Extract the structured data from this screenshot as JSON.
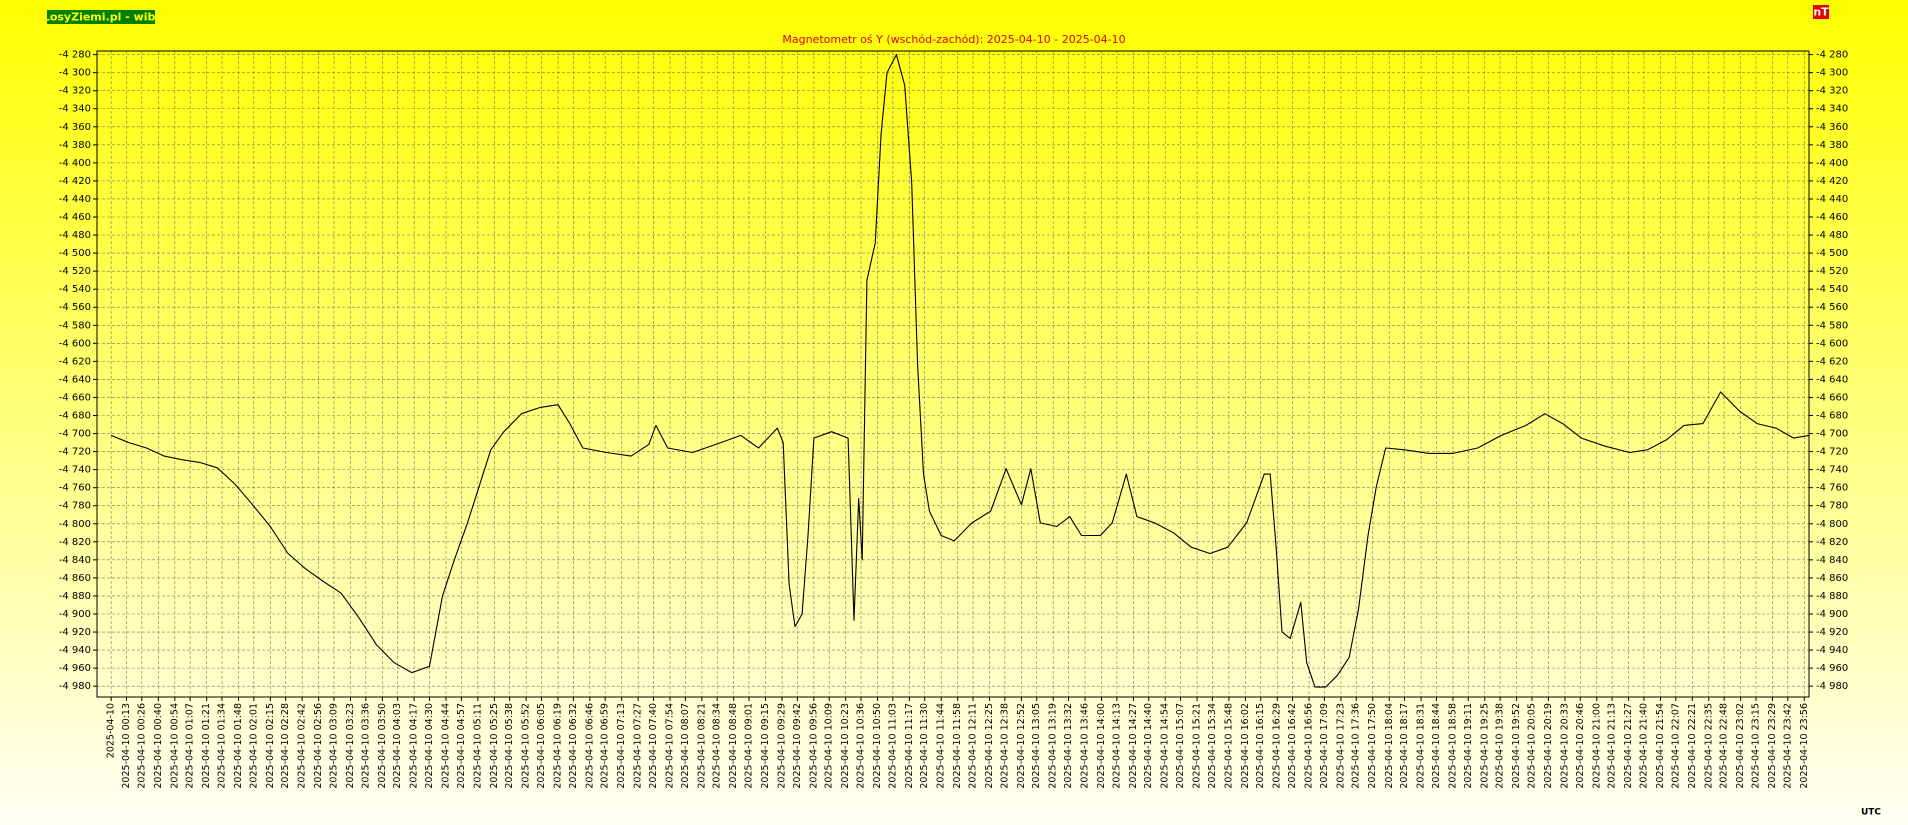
{
  "chart_data": {
    "type": "line",
    "badge": "LosyZiemi.pl - wibi",
    "y_unit": "nT",
    "x_unit": "UTC",
    "title": "Magnetometr oś Y (wschód-zachód): 2025-04-10 - 2025-04-10",
    "color": "#000000",
    "grid": true,
    "xlim": [
      -12,
      1440
    ],
    "ylim": [
      -4992,
      -4276
    ],
    "yticks": [
      {
        "value": -4280,
        "label": "-4 280"
      },
      {
        "value": -4300,
        "label": "-4 300"
      },
      {
        "value": -4320,
        "label": "-4 320"
      },
      {
        "value": -4340,
        "label": "-4 340"
      },
      {
        "value": -4360,
        "label": "-4 360"
      },
      {
        "value": -4380,
        "label": "-4 380"
      },
      {
        "value": -4400,
        "label": "-4 400"
      },
      {
        "value": -4420,
        "label": "-4 420"
      },
      {
        "value": -4440,
        "label": "-4 440"
      },
      {
        "value": -4460,
        "label": "-4 460"
      },
      {
        "value": -4480,
        "label": "-4 480"
      },
      {
        "value": -4500,
        "label": "-4 500"
      },
      {
        "value": -4520,
        "label": "-4 520"
      },
      {
        "value": -4540,
        "label": "-4 540"
      },
      {
        "value": -4560,
        "label": "-4 560"
      },
      {
        "value": -4580,
        "label": "-4 580"
      },
      {
        "value": -4600,
        "label": "-4 600"
      },
      {
        "value": -4620,
        "label": "-4 620"
      },
      {
        "value": -4640,
        "label": "-4 640"
      },
      {
        "value": -4660,
        "label": "-4 660"
      },
      {
        "value": -4680,
        "label": "-4 680"
      },
      {
        "value": -4700,
        "label": "-4 700"
      },
      {
        "value": -4720,
        "label": "-4 720"
      },
      {
        "value": -4740,
        "label": "-4 740"
      },
      {
        "value": -4760,
        "label": "-4 760"
      },
      {
        "value": -4780,
        "label": "-4 780"
      },
      {
        "value": -4800,
        "label": "-4 800"
      },
      {
        "value": -4820,
        "label": "-4 820"
      },
      {
        "value": -4840,
        "label": "-4 840"
      },
      {
        "value": -4860,
        "label": "-4 860"
      },
      {
        "value": -4880,
        "label": "-4 880"
      },
      {
        "value": -4900,
        "label": "-4 900"
      },
      {
        "value": -4920,
        "label": "-4 920"
      },
      {
        "value": -4940,
        "label": "-4 940"
      },
      {
        "value": -4960,
        "label": "-4 960"
      },
      {
        "value": -4980,
        "label": "-4 980"
      }
    ],
    "xticks": [
      {
        "value": 0,
        "label": "2025-04-10"
      },
      {
        "value": 13,
        "label": "2025-04-10 00:13"
      },
      {
        "value": 26,
        "label": "2025-04-10 00:26"
      },
      {
        "value": 40,
        "label": "2025-04-10 00:40"
      },
      {
        "value": 54,
        "label": "2025-04-10 00:54"
      },
      {
        "value": 67,
        "label": "2025-04-10 01:07"
      },
      {
        "value": 81,
        "label": "2025-04-10 01:21"
      },
      {
        "value": 94,
        "label": "2025-04-10 01:34"
      },
      {
        "value": 108,
        "label": "2025-04-10 01:48"
      },
      {
        "value": 121,
        "label": "2025-04-10 02:01"
      },
      {
        "value": 135,
        "label": "2025-04-10 02:15"
      },
      {
        "value": 148,
        "label": "2025-04-10 02:28"
      },
      {
        "value": 162,
        "label": "2025-04-10 02:42"
      },
      {
        "value": 176,
        "label": "2025-04-10 02:56"
      },
      {
        "value": 189,
        "label": "2025-04-10 03:09"
      },
      {
        "value": 203,
        "label": "2025-04-10 03:23"
      },
      {
        "value": 216,
        "label": "2025-04-10 03:36"
      },
      {
        "value": 230,
        "label": "2025-04-10 03:50"
      },
      {
        "value": 243,
        "label": "2025-04-10 04:03"
      },
      {
        "value": 257,
        "label": "2025-04-10 04:17"
      },
      {
        "value": 270,
        "label": "2025-04-10 04:30"
      },
      {
        "value": 284,
        "label": "2025-04-10 04:44"
      },
      {
        "value": 297,
        "label": "2025-04-10 04:57"
      },
      {
        "value": 311,
        "label": "2025-04-10 05:11"
      },
      {
        "value": 325,
        "label": "2025-04-10 05:25"
      },
      {
        "value": 338,
        "label": "2025-04-10 05:38"
      },
      {
        "value": 352,
        "label": "2025-04-10 05:52"
      },
      {
        "value": 365,
        "label": "2025-04-10 06:05"
      },
      {
        "value": 379,
        "label": "2025-04-10 06:19"
      },
      {
        "value": 392,
        "label": "2025-04-10 06:32"
      },
      {
        "value": 406,
        "label": "2025-04-10 06:46"
      },
      {
        "value": 419,
        "label": "2025-04-10 06:59"
      },
      {
        "value": 433,
        "label": "2025-04-10 07:13"
      },
      {
        "value": 447,
        "label": "2025-04-10 07:27"
      },
      {
        "value": 460,
        "label": "2025-04-10 07:40"
      },
      {
        "value": 474,
        "label": "2025-04-10 07:54"
      },
      {
        "value": 487,
        "label": "2025-04-10 08:07"
      },
      {
        "value": 501,
        "label": "2025-04-10 08:21"
      },
      {
        "value": 514,
        "label": "2025-04-10 08:34"
      },
      {
        "value": 528,
        "label": "2025-04-10 08:48"
      },
      {
        "value": 541,
        "label": "2025-04-10 09:01"
      },
      {
        "value": 555,
        "label": "2025-04-10 09:15"
      },
      {
        "value": 569,
        "label": "2025-04-10 09:29"
      },
      {
        "value": 582,
        "label": "2025-04-10 09:42"
      },
      {
        "value": 596,
        "label": "2025-04-10 09:56"
      },
      {
        "value": 609,
        "label": "2025-04-10 10:09"
      },
      {
        "value": 623,
        "label": "2025-04-10 10:23"
      },
      {
        "value": 636,
        "label": "2025-04-10 10:36"
      },
      {
        "value": 650,
        "label": "2025-04-10 10:50"
      },
      {
        "value": 663,
        "label": "2025-04-10 11:03"
      },
      {
        "value": 677,
        "label": "2025-04-10 11:17"
      },
      {
        "value": 690,
        "label": "2025-04-10 11:30"
      },
      {
        "value": 704,
        "label": "2025-04-10 11:44"
      },
      {
        "value": 718,
        "label": "2025-04-10 11:58"
      },
      {
        "value": 731,
        "label": "2025-04-10 12:11"
      },
      {
        "value": 745,
        "label": "2025-04-10 12:25"
      },
      {
        "value": 758,
        "label": "2025-04-10 12:38"
      },
      {
        "value": 772,
        "label": "2025-04-10 12:52"
      },
      {
        "value": 785,
        "label": "2025-04-10 13:05"
      },
      {
        "value": 799,
        "label": "2025-04-10 13:19"
      },
      {
        "value": 812,
        "label": "2025-04-10 13:32"
      },
      {
        "value": 826,
        "label": "2025-04-10 13:46"
      },
      {
        "value": 840,
        "label": "2025-04-10 14:00"
      },
      {
        "value": 853,
        "label": "2025-04-10 14:13"
      },
      {
        "value": 867,
        "label": "2025-04-10 14:27"
      },
      {
        "value": 880,
        "label": "2025-04-10 14:40"
      },
      {
        "value": 894,
        "label": "2025-04-10 14:54"
      },
      {
        "value": 907,
        "label": "2025-04-10 15:07"
      },
      {
        "value": 921,
        "label": "2025-04-10 15:21"
      },
      {
        "value": 934,
        "label": "2025-04-10 15:34"
      },
      {
        "value": 948,
        "label": "2025-04-10 15:48"
      },
      {
        "value": 962,
        "label": "2025-04-10 16:02"
      },
      {
        "value": 975,
        "label": "2025-04-10 16:15"
      },
      {
        "value": 989,
        "label": "2025-04-10 16:29"
      },
      {
        "value": 1002,
        "label": "2025-04-10 16:42"
      },
      {
        "value": 1016,
        "label": "2025-04-10 16:56"
      },
      {
        "value": 1029,
        "label": "2025-04-10 17:09"
      },
      {
        "value": 1043,
        "label": "2025-04-10 17:23"
      },
      {
        "value": 1056,
        "label": "2025-04-10 17:36"
      },
      {
        "value": 1070,
        "label": "2025-04-10 17:50"
      },
      {
        "value": 1084,
        "label": "2025-04-10 18:04"
      },
      {
        "value": 1097,
        "label": "2025-04-10 18:17"
      },
      {
        "value": 1111,
        "label": "2025-04-10 18:31"
      },
      {
        "value": 1124,
        "label": "2025-04-10 18:44"
      },
      {
        "value": 1138,
        "label": "2025-04-10 18:58"
      },
      {
        "value": 1151,
        "label": "2025-04-10 19:11"
      },
      {
        "value": 1165,
        "label": "2025-04-10 19:25"
      },
      {
        "value": 1178,
        "label": "2025-04-10 19:38"
      },
      {
        "value": 1192,
        "label": "2025-04-10 19:52"
      },
      {
        "value": 1205,
        "label": "2025-04-10 20:05"
      },
      {
        "value": 1219,
        "label": "2025-04-10 20:19"
      },
      {
        "value": 1233,
        "label": "2025-04-10 20:33"
      },
      {
        "value": 1246,
        "label": "2025-04-10 20:46"
      },
      {
        "value": 1260,
        "label": "2025-04-10 21:00"
      },
      {
        "value": 1273,
        "label": "2025-04-10 21:13"
      },
      {
        "value": 1287,
        "label": "2025-04-10 21:27"
      },
      {
        "value": 1300,
        "label": "2025-04-10 21:40"
      },
      {
        "value": 1314,
        "label": "2025-04-10 21:54"
      },
      {
        "value": 1327,
        "label": "2025-04-10 22:07"
      },
      {
        "value": 1341,
        "label": "2025-04-10 22:21"
      },
      {
        "value": 1355,
        "label": "2025-04-10 22:35"
      },
      {
        "value": 1368,
        "label": "2025-04-10 22:48"
      },
      {
        "value": 1382,
        "label": "2025-04-10 23:02"
      },
      {
        "value": 1395,
        "label": "2025-04-10 23:15"
      },
      {
        "value": 1409,
        "label": "2025-04-10 23:29"
      },
      {
        "value": 1422,
        "label": "2025-04-10 23:42"
      },
      {
        "value": 1436,
        "label": "2025-04-10 23:56"
      }
    ],
    "x": [
      0,
      15,
      30,
      45,
      60,
      75,
      90,
      105,
      120,
      135,
      150,
      165,
      180,
      195,
      210,
      225,
      240,
      255,
      270,
      281,
      291,
      302,
      312,
      322,
      333,
      348,
      364,
      379,
      389,
      400,
      420,
      441,
      456,
      462,
      472,
      493,
      513,
      534,
      549,
      565,
      570,
      575,
      580,
      586,
      591,
      596,
      611,
      625,
      630,
      634,
      637,
      641,
      648,
      653,
      658,
      666,
      673,
      679,
      684,
      689,
      694,
      704,
      715,
      730,
      746,
      759,
      772,
      780,
      788,
      802,
      813,
      823,
      839,
      849,
      861,
      870,
      885,
      901,
      916,
      932,
      947,
      963,
      978,
      983,
      988,
      993,
      1000,
      1009,
      1014,
      1021,
      1030,
      1040,
      1050,
      1058,
      1066,
      1073,
      1081,
      1097,
      1118,
      1138,
      1159,
      1179,
      1200,
      1216,
      1231,
      1247,
      1267,
      1288,
      1303,
      1319,
      1334,
      1350,
      1365,
      1381,
      1396,
      1412,
      1427,
      1440
    ],
    "values": [
      -4702,
      -4710,
      -4716,
      -4725,
      -4729,
      -4732,
      -4738,
      -4756,
      -4779,
      -4803,
      -4833,
      -4850,
      -4864,
      -4877,
      -4904,
      -4934,
      -4954,
      -4965,
      -4958,
      -4880,
      -4840,
      -4800,
      -4759,
      -4718,
      -4698,
      -4678,
      -4671,
      -4668,
      -4689,
      -4716,
      -4721,
      -4725,
      -4712,
      -4691,
      -4716,
      -4721,
      -4712,
      -4702,
      -4716,
      -4694,
      -4710,
      -4867,
      -4914,
      -4900,
      -4813,
      -4705,
      -4698,
      -4705,
      -4907,
      -4772,
      -4840,
      -4530,
      -4489,
      -4368,
      -4300,
      -4280,
      -4314,
      -4422,
      -4624,
      -4745,
      -4786,
      -4813,
      -4819,
      -4799,
      -4786,
      -4739,
      -4779,
      -4739,
      -4799,
      -4803,
      -4792,
      -4813,
      -4813,
      -4799,
      -4745,
      -4792,
      -4799,
      -4810,
      -4826,
      -4833,
      -4826,
      -4799,
      -4745,
      -4745,
      -4826,
      -4920,
      -4927,
      -4887,
      -4954,
      -4981,
      -4981,
      -4968,
      -4948,
      -4894,
      -4813,
      -4759,
      -4716,
      -4718,
      -4722,
      -4722,
      -4716,
      -4702,
      -4691,
      -4678,
      -4689,
      -4705,
      -4714,
      -4721,
      -4718,
      -4707,
      -4691,
      -4689,
      -4654,
      -4675,
      -4689,
      -4694,
      -4705,
      -4702
    ]
  }
}
